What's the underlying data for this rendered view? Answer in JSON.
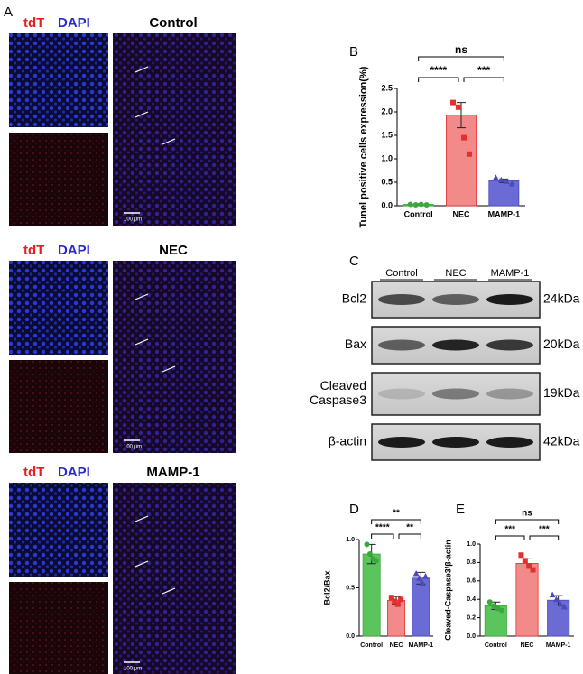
{
  "panel_letters": [
    "A",
    "B",
    "C",
    "D",
    "E"
  ],
  "microscopy": {
    "channels": [
      "tdT",
      "DAPI"
    ],
    "groups": [
      "Control",
      "NEC",
      "MAMP-1"
    ],
    "scale_bar": "100 μm"
  },
  "blot": {
    "lanes": [
      "Control",
      "NEC",
      "MAMP-1"
    ],
    "proteins": [
      "Bcl2",
      "Bax",
      [
        "Cleaved",
        "Caspase3"
      ],
      "β-actin"
    ],
    "sizes": [
      "24kDa",
      "20kDa",
      "19kDa",
      "42kDa"
    ]
  },
  "chart_data": [
    {
      "type": "bar",
      "ylabel": "Tunel positive cells expression(%)",
      "categories": [
        "Control",
        "NEC",
        "MAMP-1"
      ],
      "colors": [
        "#5cc45c",
        "#f28a8a",
        "#6b6bd6"
      ],
      "point_colors": [
        "#3aa83a",
        "#e03030",
        "#4a4ab8"
      ],
      "values": [
        0.03,
        1.93,
        0.53
      ],
      "errors": [
        0.01,
        0.27,
        0.04
      ],
      "points": [
        [
          0.03,
          0.02,
          0.03,
          0.02
        ],
        [
          2.2,
          2.1,
          1.45,
          1.1
        ],
        [
          0.6,
          0.55,
          0.52,
          0.47
        ]
      ],
      "annotations": [
        "ns",
        "****",
        "***"
      ],
      "ylim": [
        0,
        2.5
      ],
      "yticks": [
        {
          "value": 0,
          "label": "0.0"
        },
        0.5,
        {
          "value": 1,
          "label": "1.0"
        },
        1.5,
        {
          "value": 2,
          "label": "2.0"
        },
        2.5
      ]
    },
    {
      "type": "bar",
      "ylabel": "Bcl2/Bax",
      "categories": [
        "Control",
        "NEC",
        "MAMP-1"
      ],
      "colors": [
        "#5cc45c",
        "#f28a8a",
        "#6b6bd6"
      ],
      "point_colors": [
        "#3aa83a",
        "#e03030",
        "#4a4ab8"
      ],
      "values": [
        0.85,
        0.37,
        0.6
      ],
      "errors": [
        0.1,
        0.04,
        0.06
      ],
      "points": [
        [
          0.95,
          0.85,
          0.8,
          0.78
        ],
        [
          0.4,
          0.36,
          0.33,
          0.38
        ],
        [
          0.65,
          0.6,
          0.55,
          0.62
        ]
      ],
      "annotations": [
        "**",
        "****",
        "**"
      ],
      "ylim": [
        0,
        1.0
      ],
      "yticks": [
        {
          "value": 0,
          "label": "0.0"
        },
        0.5,
        {
          "value": 1,
          "label": "1.0"
        }
      ]
    },
    {
      "type": "bar",
      "ylabel": "Cleaved-Caspase3/β-actin",
      "categories": [
        "Control",
        "NEC",
        "MAMP-1"
      ],
      "colors": [
        "#5cc45c",
        "#f28a8a",
        "#6b6bd6"
      ],
      "point_colors": [
        "#3aa83a",
        "#e03030",
        "#4a4ab8"
      ],
      "values": [
        0.33,
        0.79,
        0.39
      ],
      "errors": [
        0.04,
        0.05,
        0.05
      ],
      "points": [
        [
          0.37,
          0.33,
          0.3,
          0.28
        ],
        [
          0.88,
          0.82,
          0.76,
          0.72
        ],
        [
          0.45,
          0.4,
          0.35,
          0.32
        ]
      ],
      "annotations": [
        "ns",
        "***",
        "***"
      ],
      "ylim": [
        0,
        1.0
      ],
      "yticks": [
        {
          "value": 0,
          "label": "0.0"
        },
        0.2,
        0.4,
        0.6,
        0.8,
        {
          "value": 1,
          "label": "1.0"
        }
      ]
    }
  ]
}
